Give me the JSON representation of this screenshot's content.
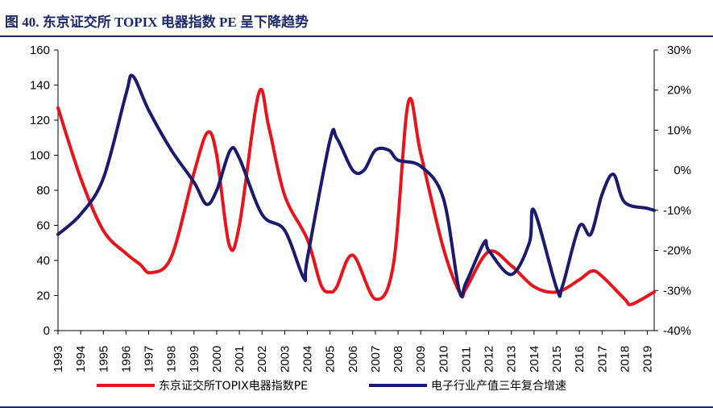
{
  "title": "图 40. 东京证交所 TOPIX 电器指数 PE 呈下降趋势",
  "chart_data": {
    "type": "line",
    "title": "图 40. 东京证交所 TOPIX 电器指数 PE 呈下降趋势",
    "xlabel": "",
    "ylabel": "",
    "categories": [
      "1993",
      "1994",
      "1995",
      "1996",
      "1997",
      "1998",
      "1999",
      "2000",
      "2001",
      "2002",
      "2003",
      "2004",
      "2005",
      "2006",
      "2007",
      "2008",
      "2009",
      "2010",
      "2011",
      "2012",
      "2013",
      "2014",
      "2015",
      "2016",
      "2017",
      "2018",
      "2019"
    ],
    "ylim": [
      0,
      160
    ],
    "y_ticks": [
      0,
      20,
      40,
      60,
      80,
      100,
      120,
      140,
      160
    ],
    "y2lim": [
      -0.4,
      0.3
    ],
    "y2_ticks": [
      "-40%",
      "-30%",
      "-20%",
      "-10%",
      "0%",
      "10%",
      "20%",
      "30%"
    ],
    "grid": false,
    "legend_position": "bottom",
    "series": [
      {
        "name": "东京证交所TOPIX电器指数PE",
        "color": "#e8141c",
        "axis": "left",
        "x": [
          1993,
          1994,
          1995,
          1996,
          1996.6,
          1997.1,
          1998,
          1999,
          1999.6,
          2000,
          2000.55,
          2001,
          2001.85,
          2002.3,
          2003,
          2004,
          2004.6,
          2005,
          2005.3,
          2006,
          2007,
          2007.8,
          2008.45,
          2009,
          2010,
          2010.75,
          2011,
          2012,
          2013,
          2014,
          2015,
          2016,
          2016.55,
          2017,
          2018,
          2018.3,
          2019.3
        ],
        "values": [
          127,
          87,
          57,
          44,
          38,
          33,
          42,
          90,
          113,
          100,
          49,
          60,
          135,
          116,
          77,
          52,
          26,
          22,
          25,
          43,
          18,
          38,
          130,
          101,
          47,
          21,
          24,
          45,
          37,
          25,
          22,
          29,
          34,
          31,
          18,
          15,
          22
        ]
      },
      {
        "name": "电子行业产值三年复合增速",
        "color": "#1a1a6e",
        "axis": "right",
        "x": [
          1993,
          1994,
          1995,
          1996,
          1996.3,
          1997,
          1998,
          1999,
          1999.55,
          2000,
          2000.6,
          2001,
          2002,
          2003,
          2003.85,
          2004,
          2005,
          2005.3,
          2006,
          2006.5,
          2007,
          2007.6,
          2008,
          2009,
          2010,
          2010.7,
          2011,
          2011.8,
          2012,
          2013,
          2013.8,
          2014,
          2015,
          2015.25,
          2016,
          2016.5,
          2017,
          2017.5,
          2018,
          2019,
          2019.3
        ],
        "values": [
          -0.16,
          -0.11,
          -0.02,
          0.19,
          0.235,
          0.15,
          0.05,
          -0.03,
          -0.085,
          -0.05,
          0.05,
          0.03,
          -0.11,
          -0.15,
          -0.27,
          -0.22,
          0.075,
          0.08,
          0.0,
          0.0,
          0.05,
          0.05,
          0.025,
          0.01,
          -0.07,
          -0.3,
          -0.28,
          -0.18,
          -0.2,
          -0.26,
          -0.18,
          -0.1,
          -0.295,
          -0.29,
          -0.14,
          -0.16,
          -0.06,
          -0.01,
          -0.08,
          -0.095,
          -0.1
        ]
      }
    ]
  },
  "legend": {
    "pe_label": "东京证交所TOPIX电器指数PE",
    "growth_label": "电子行业产值三年复合增速"
  }
}
